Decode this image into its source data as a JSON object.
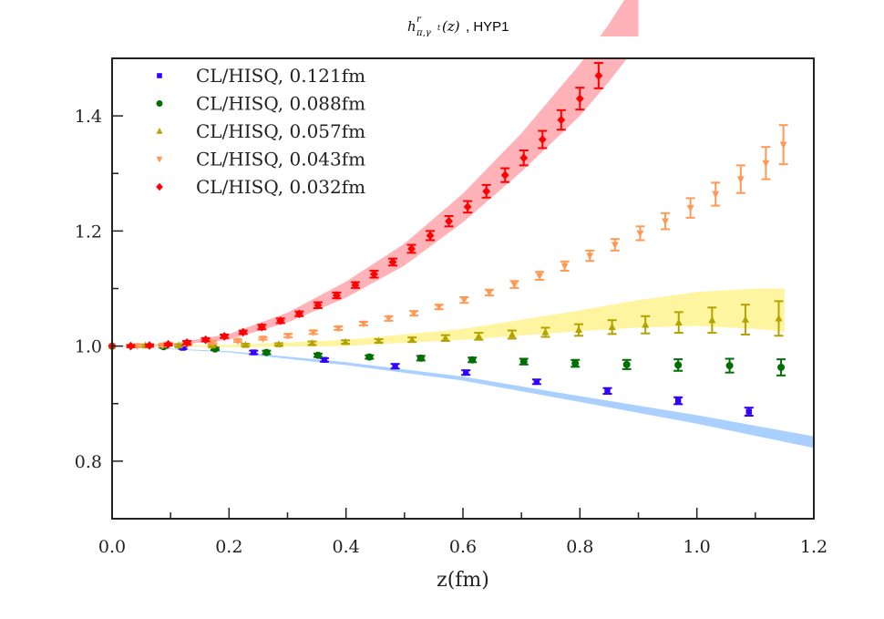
{
  "chart_data": {
    "type": "scatter",
    "title": "h^r_{π,γ^t}(z) , HYP1",
    "title_parts": {
      "main": "h",
      "sup": "r",
      "sub": "π,γ",
      "subsup": "t",
      "arg": "(z)",
      "suffix": " , HYP1"
    },
    "xlabel": "z(fm)",
    "ylabel": "",
    "xlim": [
      0.0,
      1.2
    ],
    "ylim": [
      0.7,
      1.5
    ],
    "xticks": [
      0.0,
      0.2,
      0.4,
      0.6,
      0.8,
      1.0,
      1.2
    ],
    "xtick_labels": [
      "0.0",
      "0.2",
      "0.4",
      "0.6",
      "0.8",
      "1.0",
      "1.2"
    ],
    "x_minor_ticks": [
      0.1,
      0.3,
      0.5,
      0.7,
      0.9,
      1.1
    ],
    "yticks": [
      0.8,
      1.0,
      1.2,
      1.4
    ],
    "ytick_labels": [
      "0.8",
      "1.0",
      "1.2",
      "1.4"
    ],
    "y_minor_ticks": [
      0.9,
      1.1,
      1.3
    ],
    "grid": false,
    "legend_position": "top-left",
    "series": [
      {
        "name": "CL/HISQ, 0.121fm",
        "marker": "square",
        "color": "#3300ff",
        "x": [
          0.0,
          0.121,
          0.242,
          0.363,
          0.484,
          0.605,
          0.726,
          0.847,
          0.968,
          1.089
        ],
        "y": [
          1.0,
          0.997,
          0.989,
          0.976,
          0.965,
          0.954,
          0.938,
          0.922,
          0.905,
          0.886
        ],
        "yerr": [
          0.0,
          0.002,
          0.003,
          0.003,
          0.004,
          0.004,
          0.004,
          0.005,
          0.006,
          0.007
        ]
      },
      {
        "name": "CL/HISQ, 0.088fm",
        "marker": "circle",
        "color": "#006e00",
        "x": [
          0.0,
          0.088,
          0.176,
          0.264,
          0.352,
          0.44,
          0.528,
          0.616,
          0.704,
          0.792,
          0.88,
          0.968,
          1.056,
          1.144
        ],
        "y": [
          1.0,
          0.999,
          0.995,
          0.989,
          0.984,
          0.981,
          0.979,
          0.976,
          0.973,
          0.97,
          0.968,
          0.967,
          0.966,
          0.963
        ],
        "yerr": [
          0.0,
          0.002,
          0.002,
          0.003,
          0.003,
          0.003,
          0.004,
          0.004,
          0.005,
          0.006,
          0.008,
          0.01,
          0.012,
          0.014
        ]
      },
      {
        "name": "CL/HISQ, 0.057fm",
        "marker": "triangle-up",
        "color": "#b3a200",
        "x": [
          0.0,
          0.057,
          0.114,
          0.171,
          0.228,
          0.285,
          0.342,
          0.399,
          0.456,
          0.513,
          0.57,
          0.627,
          0.684,
          0.741,
          0.798,
          0.855,
          0.912,
          0.969,
          1.026,
          1.083,
          1.14
        ],
        "y": [
          1.0,
          1.001,
          1.001,
          1.001,
          1.002,
          1.003,
          1.005,
          1.007,
          1.009,
          1.011,
          1.014,
          1.017,
          1.02,
          1.024,
          1.028,
          1.033,
          1.037,
          1.041,
          1.045,
          1.046,
          1.048
        ],
        "yerr": [
          0.0,
          0.002,
          0.002,
          0.002,
          0.002,
          0.002,
          0.003,
          0.003,
          0.003,
          0.004,
          0.005,
          0.006,
          0.007,
          0.008,
          0.01,
          0.012,
          0.015,
          0.018,
          0.022,
          0.026,
          0.03
        ]
      },
      {
        "name": "CL/HISQ, 0.043fm",
        "marker": "triangle-down",
        "color": "#ff9955",
        "x": [
          0.0,
          0.043,
          0.086,
          0.129,
          0.172,
          0.215,
          0.258,
          0.301,
          0.344,
          0.387,
          0.43,
          0.473,
          0.516,
          0.559,
          0.602,
          0.645,
          0.688,
          0.731,
          0.774,
          0.817,
          0.86,
          0.903,
          0.946,
          0.989,
          1.032,
          1.075,
          1.118,
          1.148
        ],
        "y": [
          1.0,
          1.0,
          1.001,
          1.003,
          1.006,
          1.009,
          1.013,
          1.018,
          1.024,
          1.031,
          1.039,
          1.048,
          1.057,
          1.068,
          1.08,
          1.093,
          1.107,
          1.122,
          1.139,
          1.157,
          1.176,
          1.196,
          1.217,
          1.24,
          1.264,
          1.29,
          1.318,
          1.35
        ],
        "yerr": [
          0.0,
          0.002,
          0.002,
          0.002,
          0.002,
          0.002,
          0.002,
          0.003,
          0.003,
          0.003,
          0.003,
          0.004,
          0.004,
          0.004,
          0.005,
          0.005,
          0.006,
          0.007,
          0.008,
          0.009,
          0.01,
          0.012,
          0.014,
          0.017,
          0.02,
          0.024,
          0.028,
          0.034
        ]
      },
      {
        "name": "CL/HISQ, 0.032fm",
        "marker": "diamond",
        "color": "#ff0000",
        "x": [
          0.0,
          0.032,
          0.064,
          0.096,
          0.128,
          0.16,
          0.192,
          0.224,
          0.256,
          0.288,
          0.32,
          0.352,
          0.384,
          0.416,
          0.448,
          0.48,
          0.512,
          0.544,
          0.576,
          0.608,
          0.64,
          0.672,
          0.704,
          0.736,
          0.768,
          0.8,
          0.832
        ],
        "y": [
          1.0,
          1.0,
          1.001,
          1.003,
          1.006,
          1.011,
          1.017,
          1.024,
          1.033,
          1.044,
          1.056,
          1.071,
          1.088,
          1.106,
          1.125,
          1.146,
          1.169,
          1.192,
          1.217,
          1.242,
          1.269,
          1.297,
          1.327,
          1.359,
          1.393,
          1.43,
          1.47
        ],
        "yerr": [
          0.0,
          0.002,
          0.002,
          0.002,
          0.003,
          0.003,
          0.003,
          0.003,
          0.004,
          0.004,
          0.004,
          0.005,
          0.005,
          0.005,
          0.006,
          0.006,
          0.007,
          0.008,
          0.009,
          0.01,
          0.011,
          0.012,
          0.013,
          0.015,
          0.017,
          0.019,
          0.022
        ]
      }
    ],
    "bands": [
      {
        "name": "0.121fm fit band",
        "color": "#a9d0ff",
        "x": [
          0.0,
          0.2,
          0.4,
          0.6,
          0.8,
          1.0,
          1.2
        ],
        "lower": [
          1.0,
          0.989,
          0.967,
          0.94,
          0.903,
          0.865,
          0.823
        ],
        "upper": [
          1.0,
          0.991,
          0.972,
          0.947,
          0.913,
          0.88,
          0.843
        ]
      },
      {
        "name": "0.057fm fit band",
        "color": "#fff5a0",
        "x": [
          0.0,
          0.2,
          0.4,
          0.6,
          0.8,
          0.9,
          1.0,
          1.1,
          1.15
        ],
        "lower": [
          1.0,
          0.998,
          1.0,
          1.011,
          1.026,
          1.032,
          1.035,
          1.03,
          1.025
        ],
        "upper": [
          1.0,
          1.002,
          1.011,
          1.03,
          1.062,
          1.08,
          1.094,
          1.1,
          1.1
        ]
      },
      {
        "name": "0.032fm fit band",
        "color": "#ffb3b8",
        "x": [
          0.0,
          0.1,
          0.2,
          0.3,
          0.4,
          0.5,
          0.6,
          0.7,
          0.8,
          0.85,
          0.9
        ],
        "lower": [
          1.0,
          1.001,
          1.011,
          1.041,
          1.084,
          1.14,
          1.215,
          1.303,
          1.4,
          1.46,
          1.525
        ],
        "upper": [
          1.0,
          1.004,
          1.021,
          1.058,
          1.112,
          1.178,
          1.265,
          1.37,
          1.49,
          1.56,
          1.64
        ]
      }
    ]
  }
}
